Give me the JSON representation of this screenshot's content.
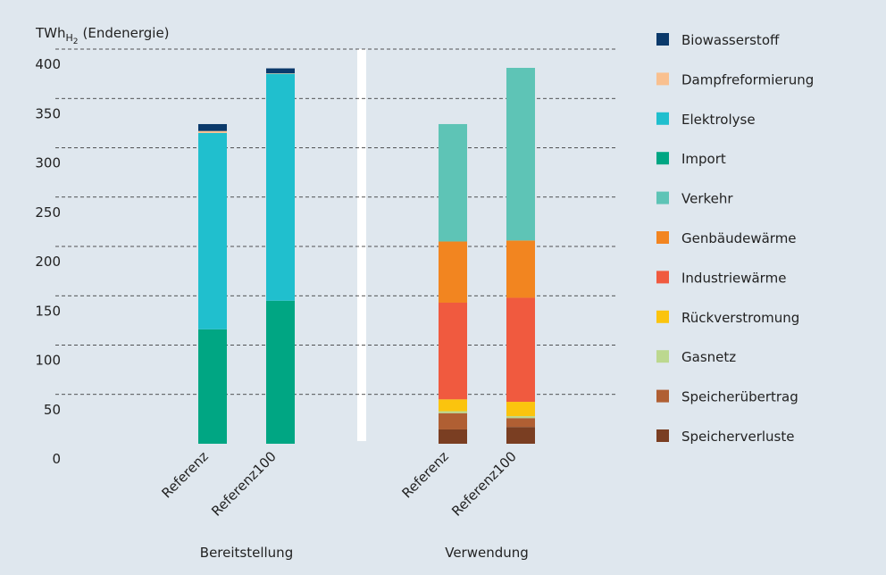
{
  "chart_data": {
    "type": "stacked_bar",
    "y_label": {
      "unit": "TWh",
      "sub": "H",
      "subsub": "2",
      "rest": "(Endenergie)"
    },
    "categories": [
      "Referenz",
      "Referenz100",
      "Referenz",
      "Referenz100"
    ],
    "groups": [
      {
        "name": "Bereitstellung",
        "size": 2
      },
      {
        "name": "Verwendung",
        "size": 2
      }
    ],
    "series": [
      {
        "name": "Biowasserstoff",
        "color": "#0b3a6b",
        "values": [
          7,
          5,
          null,
          null
        ]
      },
      {
        "name": "Dampfreformierung",
        "color": "#f9c08f",
        "values": [
          2,
          0.5,
          null,
          null
        ]
      },
      {
        "name": "Elektrolyse",
        "color": "#20bfce",
        "values": [
          199,
          230,
          null,
          null
        ]
      },
      {
        "name": "Import",
        "color": "#00a683",
        "values": [
          116,
          145,
          null,
          null
        ]
      },
      {
        "name": "Verkehr",
        "color": "#5ec4b6",
        "values": [
          null,
          null,
          119,
          175
        ]
      },
      {
        "name": "Genbäudewärme",
        "color": "#f28520",
        "values": [
          null,
          null,
          62,
          58
        ]
      },
      {
        "name": "Industriewärme",
        "color": "#f05a3f",
        "values": [
          null,
          null,
          98,
          105.5
        ]
      },
      {
        "name": "Rückverstromung",
        "color": "#fbc40e",
        "values": [
          null,
          null,
          12,
          14.5
        ]
      },
      {
        "name": "Gasnetz",
        "color": "#bcd88f",
        "values": [
          null,
          null,
          2,
          2
        ]
      },
      {
        "name": "Speicherübertrag",
        "color": "#b05f33",
        "values": [
          null,
          null,
          16.5,
          9
        ]
      },
      {
        "name": "Speicherverluste",
        "color": "#7a3e22",
        "values": [
          null,
          null,
          14.5,
          17
        ]
      }
    ],
    "ylim": [
      0,
      400
    ],
    "yticks": [
      0,
      50,
      100,
      150,
      200,
      250,
      300,
      350,
      400
    ],
    "grid": true
  }
}
